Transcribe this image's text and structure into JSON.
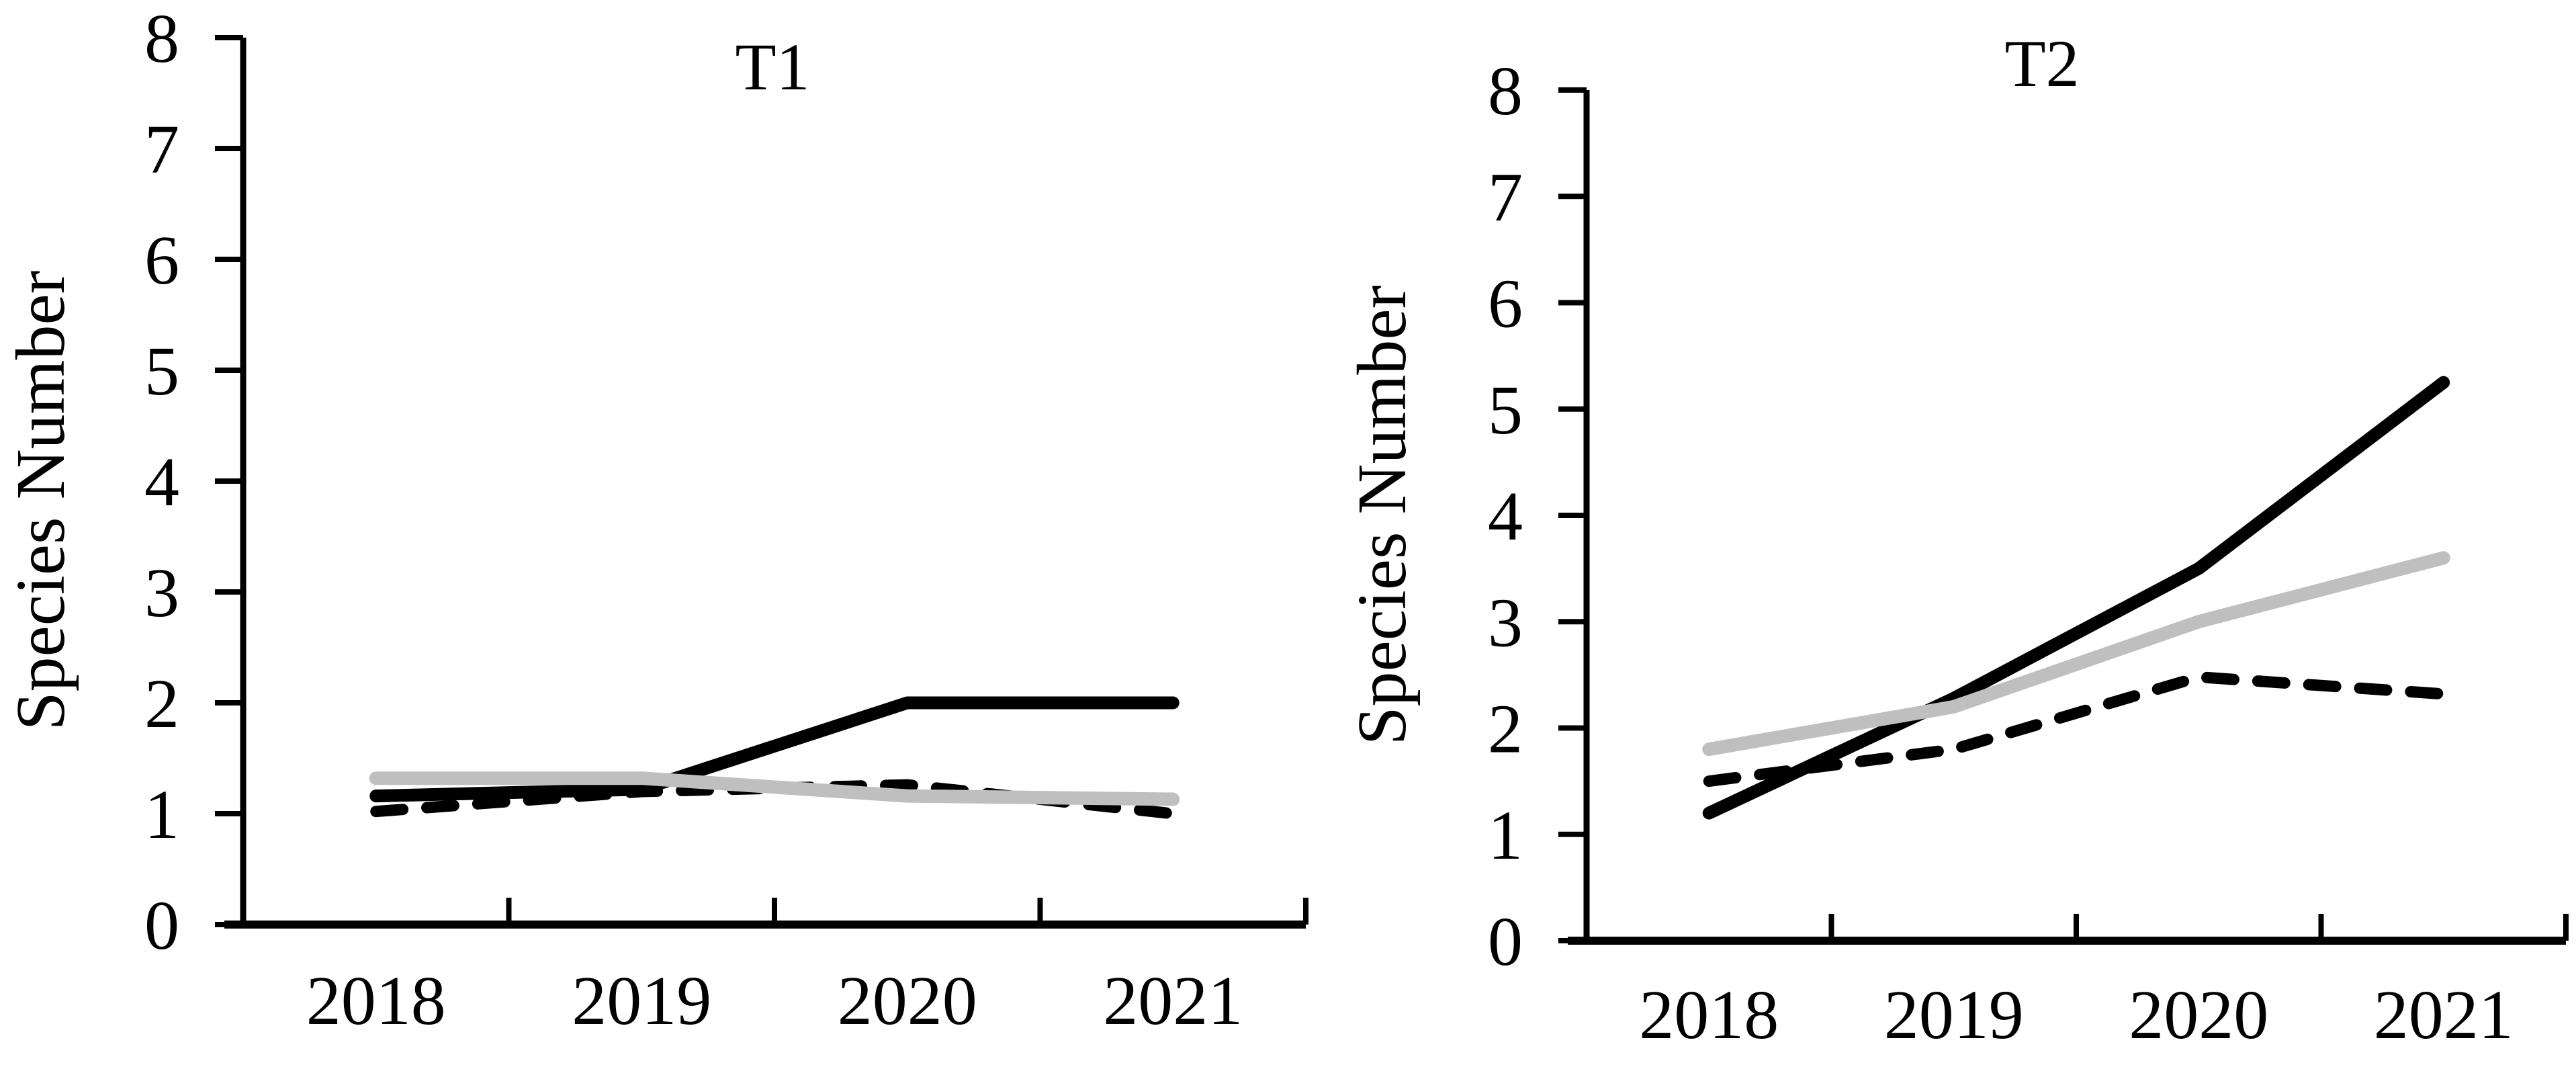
{
  "figure": {
    "background": "#ffffff",
    "text_color": "#000000",
    "gray_series_color": "#BFBFBF",
    "black_series_color": "#000000"
  },
  "chart_data": [
    {
      "type": "line",
      "title": "T1",
      "xlabel": "",
      "ylabel": "Species Number",
      "categories": [
        "2018",
        "2019",
        "2020",
        "2021"
      ],
      "ylim": [
        0,
        8
      ],
      "y_ticks": [
        "0",
        "1",
        "2",
        "3",
        "4",
        "5",
        "6",
        "7",
        "8"
      ],
      "grid": false,
      "legend_position": "none",
      "series": [
        {
          "name": "black-solid",
          "color": "#000000",
          "line_style": "solid",
          "values": [
            1.16,
            1.22,
            2.0,
            2.0
          ]
        },
        {
          "name": "black-dashed",
          "color": "#000000",
          "line_style": "dashed",
          "values": [
            1.02,
            1.2,
            1.26,
            1.0
          ]
        },
        {
          "name": "gray-solid",
          "color": "#BFBFBF",
          "line_style": "solid",
          "values": [
            1.32,
            1.32,
            1.16,
            1.13
          ]
        }
      ]
    },
    {
      "type": "line",
      "title": "T2",
      "xlabel": "",
      "ylabel": "Species Number",
      "categories": [
        "2018",
        "2019",
        "2020",
        "2021"
      ],
      "ylim": [
        0,
        8
      ],
      "y_ticks": [
        "0",
        "1",
        "2",
        "3",
        "4",
        "5",
        "6",
        "7",
        "8"
      ],
      "grid": false,
      "legend_position": "none",
      "series": [
        {
          "name": "black-solid",
          "color": "#000000",
          "line_style": "solid",
          "values": [
            1.2,
            2.28,
            3.5,
            5.25
          ]
        },
        {
          "name": "black-dashed",
          "color": "#000000",
          "line_style": "dashed",
          "values": [
            1.5,
            1.8,
            2.48,
            2.32
          ]
        },
        {
          "name": "gray-solid",
          "color": "#BFBFBF",
          "line_style": "solid",
          "values": [
            1.8,
            2.2,
            3.0,
            3.6
          ]
        }
      ]
    }
  ]
}
